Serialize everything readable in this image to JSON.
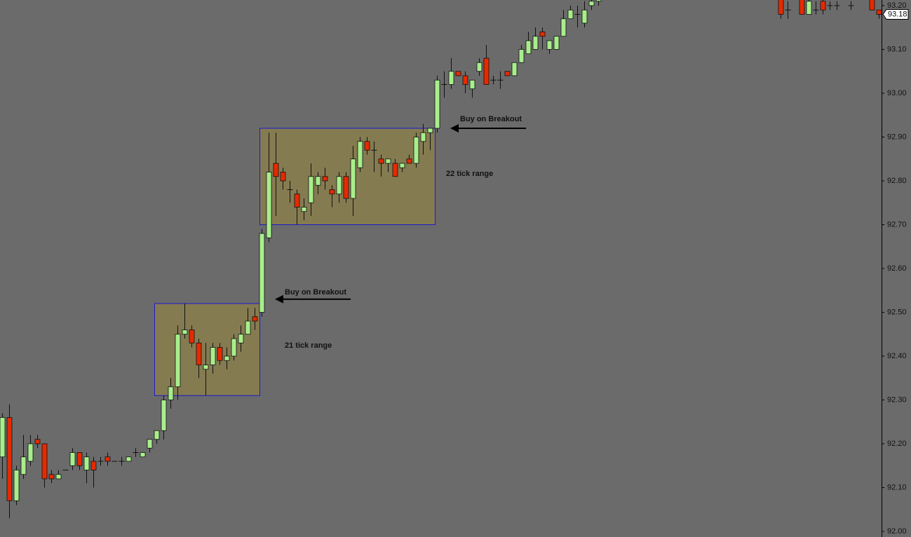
{
  "chart_data": {
    "type": "candlestick",
    "up_color": "#a8ee8c",
    "down_color": "#e62a00",
    "background": "#6b6b6b",
    "ylim": [
      92.0,
      93.2
    ],
    "yticks": [
      {
        "value": 92.0,
        "label": "92.00"
      },
      {
        "value": 92.1,
        "label": "92.10"
      },
      {
        "value": 92.2,
        "label": "92.20"
      },
      {
        "value": 92.3,
        "label": "92.30"
      },
      {
        "value": 92.4,
        "label": "92.40"
      },
      {
        "value": 92.5,
        "label": "92.50"
      },
      {
        "value": 92.6,
        "label": "92.60"
      },
      {
        "value": 92.7,
        "label": "92.70"
      },
      {
        "value": 92.8,
        "label": "92.80"
      },
      {
        "value": 92.9,
        "label": "92.90"
      },
      {
        "value": 93.0,
        "label": "93.00"
      },
      {
        "value": 93.1,
        "label": "93.10"
      },
      {
        "value": 93.2,
        "label": "93.20"
      }
    ],
    "last_price": 93.18,
    "open": [
      92.17,
      92.26,
      92.07,
      92.13,
      92.16,
      92.21,
      92.2,
      92.13,
      92.12,
      92.14,
      92.15,
      92.18,
      92.14,
      92.16,
      92.16,
      92.17,
      92.16,
      92.16,
      92.16,
      92.18,
      92.17,
      92.19,
      92.21,
      92.23,
      92.3,
      92.33,
      92.45,
      92.46,
      92.43,
      92.37,
      92.38,
      92.42,
      92.39,
      92.4,
      92.43,
      92.45,
      92.49,
      92.5,
      92.67,
      92.84,
      92.82,
      92.78,
      92.77,
      92.73,
      92.75,
      92.79,
      92.81,
      92.78,
      92.77,
      92.81,
      92.76,
      92.83,
      92.89,
      92.87,
      92.85,
      92.84,
      92.84,
      92.83,
      92.85,
      92.84,
      92.89,
      92.91,
      92.92,
      93.02,
      93.02,
      93.05,
      93.04,
      93.01,
      93.05,
      93.08,
      93.03,
      93.03,
      93.05,
      93.04,
      93.07,
      93.09,
      93.1,
      93.14,
      93.1,
      93.1,
      93.13,
      93.17,
      93.18,
      93.16,
      93.2,
      93.21,
      null,
      null,
      null,
      null,
      null,
      null,
      null,
      null,
      null,
      null,
      null,
      null,
      null,
      null,
      null,
      null,
      null,
      null,
      null,
      null,
      null,
      null,
      null,
      null,
      null,
      93.22,
      93.19,
      null,
      93.22,
      93.18,
      93.19,
      93.21,
      93.2,
      93.2,
      null,
      93.2,
      null,
      null,
      93.22,
      93.19
    ],
    "high": [
      92.27,
      92.29,
      92.15,
      92.22,
      92.22,
      92.22,
      92.2,
      92.14,
      92.14,
      92.14,
      92.19,
      92.18,
      92.18,
      92.17,
      92.17,
      92.18,
      92.16,
      92.17,
      92.17,
      92.19,
      92.18,
      92.2,
      92.23,
      92.31,
      92.35,
      92.47,
      92.52,
      92.47,
      92.44,
      92.43,
      92.43,
      92.43,
      92.42,
      92.45,
      92.47,
      92.51,
      92.51,
      92.69,
      92.91,
      92.91,
      92.83,
      92.8,
      92.78,
      92.76,
      92.84,
      92.82,
      92.83,
      92.79,
      92.82,
      92.82,
      92.88,
      92.9,
      92.9,
      92.89,
      92.86,
      92.85,
      92.85,
      92.84,
      92.86,
      92.91,
      92.93,
      92.92,
      93.04,
      93.05,
      93.08,
      93.05,
      93.05,
      93.03,
      93.08,
      93.11,
      93.04,
      93.05,
      93.05,
      93.07,
      93.11,
      93.14,
      93.15,
      93.15,
      93.12,
      93.13,
      93.19,
      93.2,
      93.2,
      93.21,
      93.23,
      93.23,
      null,
      null,
      null,
      null,
      null,
      null,
      null,
      null,
      null,
      null,
      null,
      null,
      null,
      null,
      null,
      null,
      null,
      null,
      null,
      null,
      null,
      null,
      null,
      null,
      null,
      93.23,
      93.21,
      null,
      93.23,
      93.22,
      93.21,
      93.22,
      93.21,
      93.21,
      null,
      93.21,
      null,
      null,
      93.23,
      93.19
    ],
    "low": [
      92.12,
      92.03,
      92.06,
      92.12,
      92.15,
      92.19,
      92.1,
      92.11,
      92.12,
      92.14,
      92.14,
      92.14,
      92.11,
      92.1,
      92.15,
      92.15,
      92.16,
      92.15,
      92.16,
      92.17,
      92.17,
      92.18,
      92.2,
      92.21,
      92.28,
      92.3,
      92.44,
      92.42,
      92.35,
      92.31,
      92.36,
      92.38,
      92.37,
      92.39,
      92.41,
      92.45,
      92.46,
      92.49,
      92.66,
      92.72,
      92.78,
      92.75,
      92.7,
      92.71,
      92.72,
      92.77,
      92.78,
      92.74,
      92.75,
      92.75,
      92.72,
      92.82,
      92.86,
      92.82,
      92.81,
      92.82,
      92.81,
      92.82,
      92.84,
      92.83,
      92.86,
      92.87,
      92.91,
      92.99,
      93.01,
      93.04,
      93.0,
      92.99,
      93.04,
      93.02,
      93.02,
      93.01,
      93.04,
      93.04,
      93.07,
      93.09,
      93.1,
      93.1,
      93.09,
      93.1,
      93.13,
      93.17,
      93.15,
      93.15,
      93.19,
      93.2,
      null,
      null,
      null,
      null,
      null,
      null,
      null,
      null,
      null,
      null,
      null,
      null,
      null,
      null,
      null,
      null,
      null,
      null,
      null,
      null,
      null,
      null,
      null,
      null,
      null,
      93.17,
      93.17,
      null,
      93.18,
      93.18,
      93.18,
      93.18,
      93.19,
      93.19,
      null,
      93.19,
      null,
      null,
      93.19,
      93.17
    ],
    "close": [
      92.26,
      92.07,
      92.14,
      92.17,
      92.2,
      92.2,
      92.12,
      92.12,
      92.13,
      92.14,
      92.18,
      92.15,
      92.17,
      92.14,
      92.16,
      92.16,
      92.16,
      92.16,
      92.17,
      92.18,
      92.18,
      92.21,
      92.23,
      92.3,
      92.33,
      92.45,
      92.46,
      92.43,
      92.38,
      92.38,
      92.42,
      92.39,
      92.4,
      92.44,
      92.45,
      92.48,
      92.48,
      92.68,
      92.82,
      92.81,
      92.8,
      92.78,
      92.74,
      92.74,
      92.81,
      92.81,
      92.8,
      92.77,
      92.81,
      92.76,
      92.85,
      92.89,
      92.87,
      92.87,
      92.84,
      92.85,
      92.81,
      92.84,
      92.84,
      92.9,
      92.91,
      92.92,
      93.03,
      93.02,
      93.05,
      93.04,
      93.02,
      93.03,
      93.07,
      93.02,
      93.03,
      93.03,
      93.04,
      93.07,
      93.1,
      93.12,
      93.13,
      93.13,
      93.12,
      93.13,
      93.17,
      93.19,
      93.18,
      93.19,
      93.21,
      93.22,
      null,
      null,
      null,
      null,
      null,
      null,
      null,
      null,
      null,
      null,
      null,
      null,
      null,
      null,
      null,
      null,
      null,
      null,
      null,
      null,
      null,
      null,
      null,
      null,
      null,
      93.18,
      93.19,
      null,
      93.18,
      93.21,
      93.19,
      93.19,
      93.2,
      93.2,
      null,
      93.2,
      null,
      null,
      93.19,
      93.18
    ],
    "ranges": [
      {
        "label": "21 tick range",
        "low": 92.31,
        "high": 92.52
      },
      {
        "label": "22 tick range",
        "low": 92.7,
        "high": 92.92
      }
    ],
    "breakouts": [
      {
        "label": "Buy on Breakout",
        "price": 92.53
      },
      {
        "label": "Buy on Breakout",
        "price": 92.92
      }
    ]
  }
}
